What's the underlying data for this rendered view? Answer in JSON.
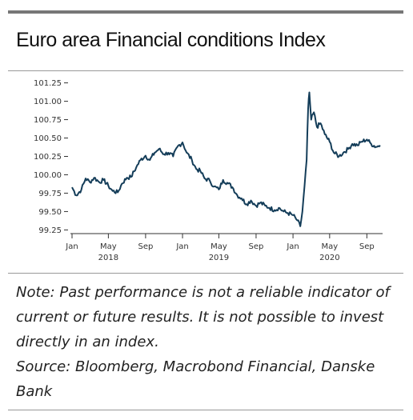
{
  "chart_data": {
    "type": "line",
    "title": "Euro area Financial conditions Index",
    "y_ticks": [
      "101.25",
      "101.00",
      "100.75",
      "100.50",
      "100.25",
      "100.00",
      "99.75",
      "99.50",
      "99.25"
    ],
    "x_ticks": [
      "Jan",
      "May",
      "Sep",
      "Jan",
      "May",
      "Sep",
      "Jan",
      "May",
      "Sep"
    ],
    "year_labels": [
      "2018",
      "2019",
      "2020"
    ],
    "ylim": [
      99.2,
      101.3
    ],
    "xlim": [
      "2018-01-01",
      "2020-10-15"
    ],
    "line_color": "#143d59",
    "series": [
      {
        "points": [
          [
            "2018-01-01",
            99.83
          ],
          [
            "2018-01-15",
            99.72
          ],
          [
            "2018-02-01",
            99.8
          ],
          [
            "2018-02-15",
            99.95
          ],
          [
            "2018-03-01",
            99.9
          ],
          [
            "2018-03-15",
            99.96
          ],
          [
            "2018-04-01",
            99.9
          ],
          [
            "2018-04-15",
            99.93
          ],
          [
            "2018-05-01",
            99.85
          ],
          [
            "2018-05-15",
            99.78
          ],
          [
            "2018-06-01",
            99.76
          ],
          [
            "2018-06-15",
            99.88
          ],
          [
            "2018-07-01",
            99.96
          ],
          [
            "2018-07-15",
            99.97
          ],
          [
            "2018-08-01",
            100.1
          ],
          [
            "2018-08-15",
            100.2
          ],
          [
            "2018-09-01",
            100.26
          ],
          [
            "2018-09-15",
            100.2
          ],
          [
            "2018-10-01",
            100.3
          ],
          [
            "2018-10-15",
            100.35
          ],
          [
            "2018-11-01",
            100.28
          ],
          [
            "2018-11-15",
            100.3
          ],
          [
            "2018-12-01",
            100.25
          ],
          [
            "2018-12-15",
            100.38
          ],
          [
            "2019-01-01",
            100.44
          ],
          [
            "2019-01-15",
            100.3
          ],
          [
            "2019-02-01",
            100.2
          ],
          [
            "2019-02-15",
            100.08
          ],
          [
            "2019-03-01",
            100.05
          ],
          [
            "2019-03-15",
            99.95
          ],
          [
            "2019-04-01",
            99.92
          ],
          [
            "2019-04-15",
            99.84
          ],
          [
            "2019-05-01",
            99.8
          ],
          [
            "2019-05-15",
            99.93
          ],
          [
            "2019-06-01",
            99.88
          ],
          [
            "2019-06-15",
            99.83
          ],
          [
            "2019-07-01",
            99.72
          ],
          [
            "2019-07-15",
            99.68
          ],
          [
            "2019-08-01",
            99.6
          ],
          [
            "2019-08-15",
            99.65
          ],
          [
            "2019-09-01",
            99.58
          ],
          [
            "2019-09-15",
            99.62
          ],
          [
            "2019-10-01",
            99.58
          ],
          [
            "2019-10-15",
            99.55
          ],
          [
            "2019-11-01",
            99.52
          ],
          [
            "2019-11-15",
            99.55
          ],
          [
            "2019-12-01",
            99.5
          ],
          [
            "2019-12-15",
            99.48
          ],
          [
            "2020-01-01",
            99.45
          ],
          [
            "2020-01-15",
            99.38
          ],
          [
            "2020-01-25",
            99.3
          ],
          [
            "2020-02-01",
            99.5
          ],
          [
            "2020-02-08",
            99.85
          ],
          [
            "2020-02-15",
            100.2
          ],
          [
            "2020-02-20",
            100.9
          ],
          [
            "2020-02-24",
            101.12
          ],
          [
            "2020-03-01",
            100.75
          ],
          [
            "2020-03-10",
            100.85
          ],
          [
            "2020-03-20",
            100.65
          ],
          [
            "2020-04-01",
            100.7
          ],
          [
            "2020-04-15",
            100.55
          ],
          [
            "2020-05-01",
            100.45
          ],
          [
            "2020-05-15",
            100.3
          ],
          [
            "2020-06-01",
            100.25
          ],
          [
            "2020-06-15",
            100.3
          ],
          [
            "2020-07-01",
            100.35
          ],
          [
            "2020-07-15",
            100.42
          ],
          [
            "2020-08-01",
            100.4
          ],
          [
            "2020-08-15",
            100.45
          ],
          [
            "2020-09-01",
            100.48
          ],
          [
            "2020-09-15",
            100.42
          ],
          [
            "2020-10-01",
            100.38
          ],
          [
            "2020-10-15",
            100.4
          ]
        ]
      }
    ]
  },
  "note": {
    "disclaimer": "Note: Past performance is not a reliable indicator of current or future results. It is not possible to invest directly in an index.",
    "source": "Source: Bloomberg, Macrobond Financial, Danske Bank"
  }
}
